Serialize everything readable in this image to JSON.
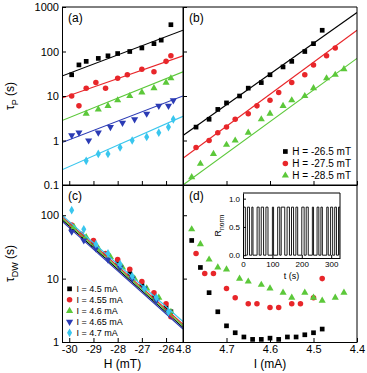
{
  "chart_data": [
    {
      "type": "scatter",
      "title": "(a)",
      "ylabel": [
        "τ",
        "P",
        " (s)"
      ],
      "log": "y",
      "tick_labels": "y",
      "xlim": [
        -30.3,
        -25.3
      ],
      "ylim": [
        0.1,
        1000
      ],
      "xticks": [
        -30,
        -29,
        -28,
        -27,
        -26
      ],
      "yticks": [
        0.1,
        1,
        10,
        100,
        1000
      ],
      "series": [
        {
          "color": "#000000",
          "marker": "square",
          "x": [
            -29.9,
            -29.6,
            -29.3,
            -28.8,
            -28.4,
            -28,
            -27.5,
            -27,
            -26.5,
            -26.2,
            -25.8
          ],
          "values": [
            30,
            50,
            60,
            70,
            80,
            90,
            100,
            120,
            150,
            180,
            400
          ],
          "fit_x": [
            -30.3,
            -25.3
          ],
          "fit_values": [
            28,
            300
          ]
        },
        {
          "color": "#e8262a",
          "marker": "circle",
          "x": [
            -29.9,
            -29.6,
            -29.3,
            -28.9,
            -28.5,
            -28,
            -27.6,
            -27,
            -26.5,
            -26,
            -25.8
          ],
          "values": [
            10,
            6,
            15,
            20,
            15,
            25,
            30,
            40,
            35,
            60,
            80
          ],
          "fit_x": [
            -30.3,
            -25.3
          ],
          "fit_values": [
            9,
            80
          ]
        },
        {
          "color": "#5cc83a",
          "marker": "triangle-up",
          "x": [
            -29.3,
            -28.8,
            -28.4,
            -28,
            -27.5,
            -27,
            -26.5,
            -26,
            -25.8
          ],
          "values": [
            4,
            5,
            6,
            8,
            10,
            12,
            15,
            20,
            25
          ],
          "fit_x": [
            -30.3,
            -25.3
          ],
          "fit_values": [
            2.8,
            35
          ]
        },
        {
          "color": "#2b3bb5",
          "marker": "triangle-down",
          "x": [
            -29.9,
            -29.6,
            -29.2,
            -28.8,
            -28.3,
            -27.8,
            -27.3,
            -26.8,
            -26.3,
            -25.9,
            -25.7
          ],
          "values": [
            1.3,
            1.5,
            1.0,
            1.5,
            2,
            2.5,
            3,
            4,
            6,
            6,
            8
          ],
          "fit_x": [
            -30.3,
            -25.3
          ],
          "fit_values": [
            0.9,
            10
          ]
        },
        {
          "color": "#39c6ee",
          "marker": "diamond",
          "x": [
            -29.3,
            -28.8,
            -28.4,
            -27.9,
            -27.4,
            -26.8,
            -26.3,
            -25.9,
            -25.7
          ],
          "values": [
            0.35,
            0.5,
            0.5,
            0.7,
            1,
            1.2,
            1.5,
            2,
            3
          ],
          "fit_x": [
            -30.3,
            -25.3
          ],
          "fit_values": [
            0.22,
            3.5
          ]
        }
      ]
    },
    {
      "type": "scatter",
      "title": "(b)",
      "log": "y",
      "tick_labels": false,
      "legend": "lower right",
      "xlim": [
        4.8,
        4.4
      ],
      "ylim": [
        0.1,
        1000
      ],
      "xticks": [
        4.8,
        4.7,
        4.6,
        4.5,
        4.4
      ],
      "yticks": [
        0.1,
        1,
        10,
        100,
        1000
      ],
      "series": [
        {
          "name": "H = -26.5 mT",
          "color": "#000000",
          "marker": "square",
          "x": [
            4.77,
            4.74,
            4.72,
            4.7,
            4.67,
            4.65,
            4.62,
            4.6,
            4.57,
            4.55,
            4.52,
            4.5,
            4.48
          ],
          "values": [
            2,
            3,
            5,
            7,
            10,
            15,
            20,
            30,
            45,
            60,
            100,
            150,
            300
          ],
          "fit_x": [
            4.8,
            4.4
          ],
          "fit_values": [
            1.3,
            750
          ]
        },
        {
          "name": "H = -27.5 mT",
          "color": "#e8262a",
          "marker": "circle",
          "x": [
            4.77,
            4.74,
            4.72,
            4.7,
            4.68,
            4.65,
            4.63,
            4.6,
            4.58,
            4.55,
            4.52,
            4.5,
            4.47,
            4.45
          ],
          "values": [
            0.7,
            1,
            1.5,
            2,
            3,
            4,
            6,
            8,
            12,
            20,
            30,
            50,
            80,
            120
          ],
          "fit_x": [
            4.8,
            4.4
          ],
          "fit_values": [
            0.4,
            300
          ]
        },
        {
          "name": "H = -28.5 mT",
          "color": "#5cc83a",
          "marker": "triangle-up",
          "x": [
            4.78,
            4.76,
            4.73,
            4.7,
            4.68,
            4.65,
            4.62,
            4.6,
            4.57,
            4.55,
            4.52,
            4.5,
            4.47,
            4.45,
            4.43
          ],
          "values": [
            0.15,
            0.3,
            0.5,
            0.8,
            1,
            1.5,
            3,
            4,
            6,
            8,
            10,
            15,
            25,
            30,
            40
          ],
          "fit_x": [
            4.8,
            4.4
          ],
          "fit_values": [
            0.1,
            70
          ]
        }
      ]
    },
    {
      "type": "scatter",
      "title": "(c)",
      "xlabel": "H (mT)",
      "ylabel": [
        "τ",
        "DW",
        " (s)"
      ],
      "log": "y",
      "legend": "lower left",
      "xlim": [
        -30.3,
        -25.3
      ],
      "ylim": [
        1,
        300
      ],
      "xticks": [
        -30,
        -29,
        -28,
        -27,
        -26
      ],
      "yticks": [
        1,
        10,
        100
      ],
      "series": [
        {
          "name": "I = 4.5 mA",
          "color": "#000000",
          "marker": "square",
          "x": [
            -29.9,
            -29.4,
            -29,
            -28.5,
            -28,
            -27.5,
            -27,
            -26.5,
            -26,
            -25.8
          ],
          "values": [
            60,
            45,
            35,
            25,
            18,
            12,
            8,
            5,
            3.5,
            3
          ],
          "fit_x": [
            -30.3,
            -25.3
          ],
          "fit_values": [
            85,
            1.7
          ]
        },
        {
          "name": "I = 4.55 mA",
          "color": "#e8262a",
          "marker": "circle",
          "x": [
            -29.9,
            -29.5,
            -29,
            -28.5,
            -28,
            -27.5,
            -27,
            -26.5,
            -26,
            -25.8
          ],
          "values": [
            70,
            50,
            40,
            25,
            20,
            14,
            9,
            6,
            4,
            2.5
          ],
          "fit_x": [
            -30.3,
            -25.3
          ],
          "fit_values": [
            95,
            1.9
          ]
        },
        {
          "name": "I = 4.6 mA",
          "color": "#5cc83a",
          "marker": "triangle-up",
          "x": [
            -29.8,
            -29.3,
            -28.8,
            -28.3,
            -27.8,
            -27.3,
            -26.8,
            -26.3,
            -25.8
          ],
          "values": [
            65,
            45,
            30,
            22,
            15,
            10,
            7,
            5,
            3
          ],
          "fit_x": [
            -30.3,
            -25.3
          ],
          "fit_values": [
            90,
            1.8
          ]
        },
        {
          "name": "I = 4.65 mA",
          "color": "#2b3bb5",
          "marker": "triangle-down",
          "x": [
            -29.9,
            -29.4,
            -28.9,
            -28.4,
            -27.9,
            -27.4,
            -26.9,
            -26.4,
            -25.9
          ],
          "values": [
            55,
            40,
            30,
            20,
            15,
            10,
            7,
            4.5,
            3
          ],
          "fit_x": [
            -30.3,
            -25.3
          ],
          "fit_values": [
            80,
            1.6
          ]
        },
        {
          "name": "I = 4.7 mA",
          "color": "#39c6ee",
          "marker": "diamond",
          "x": [
            -29.9,
            -29.4,
            -28.9,
            -28.4,
            -27.9,
            -27.4,
            -26.9,
            -26.4,
            -25.9
          ],
          "values": [
            120,
            60,
            35,
            25,
            17,
            11,
            7,
            5,
            3
          ],
          "fit_x": [
            -30.3,
            -25.3
          ],
          "fit_values": [
            100,
            2.1
          ]
        }
      ]
    },
    {
      "type": "scatter",
      "title": "(d)",
      "xlabel": "I (mA)",
      "log": "y",
      "tick_labels": "x",
      "xlim": [
        4.8,
        4.4
      ],
      "ylim": [
        1,
        300
      ],
      "xticks": [
        4.8,
        4.7,
        4.6,
        4.5,
        4.4
      ],
      "yticks": [
        1,
        10,
        100
      ],
      "series": [
        {
          "color": "#000000",
          "marker": "square",
          "x": [
            4.78,
            4.76,
            4.74,
            4.72,
            4.7,
            4.68,
            4.66,
            4.64,
            4.62,
            4.6,
            4.58,
            4.56,
            4.54,
            4.52,
            4.5,
            4.48
          ],
          "values": [
            40,
            15,
            6,
            3,
            1.8,
            1.4,
            1.2,
            1.1,
            1.1,
            1.15,
            1.1,
            1.2,
            1.2,
            1.3,
            1.4,
            1.6
          ]
        },
        {
          "color": "#e8262a",
          "marker": "circle",
          "x": [
            4.77,
            4.75,
            4.73,
            4.7,
            4.68,
            4.65,
            4.63,
            4.6,
            4.58,
            4.55,
            4.53,
            4.5,
            4.48
          ],
          "values": [
            25,
            12,
            12,
            7,
            5,
            4,
            4,
            3.5,
            3.5,
            4,
            4,
            5,
            10
          ]
        },
        {
          "color": "#5cc83a",
          "marker": "triangle-up",
          "x": [
            4.78,
            4.76,
            4.74,
            4.72,
            4.7,
            4.67,
            4.65,
            4.62,
            4.6,
            4.57,
            4.55,
            4.52,
            4.5,
            4.48,
            4.45,
            4.43
          ],
          "values": [
            60,
            35,
            20,
            15,
            14,
            10,
            9,
            8,
            7,
            6,
            5,
            6,
            5,
            4.5,
            5,
            6
          ]
        }
      ]
    },
    {
      "type": "line",
      "xlabel": "t (s)",
      "ylabel": [
        "R",
        "norm"
      ],
      "xlim": [
        0,
        330
      ],
      "ylim": [
        -0.05,
        1.1
      ],
      "xticks": [
        0,
        100,
        200,
        300
      ],
      "yticks": [
        {
          "value": 0,
          "label": "0.0"
        },
        {
          "value": 0.5,
          "label": "0.5"
        },
        {
          "value": 1,
          "label": "1.0"
        }
      ],
      "series": [
        {
          "color": "#000000",
          "line_style": "step",
          "x": [
            0,
            8,
            15,
            22,
            30,
            34,
            48,
            55,
            62,
            70,
            78,
            85,
            100,
            104,
            118,
            125,
            130,
            142,
            150,
            158,
            165,
            172,
            180,
            186,
            200,
            208,
            215,
            222,
            236,
            240,
            252,
            258,
            265,
            270,
            285,
            290,
            298,
            305,
            312,
            318,
            325,
            330
          ],
          "values": [
            0.85,
            0,
            0.85,
            0,
            0.85,
            0,
            0.85,
            0,
            0.85,
            0,
            0.85,
            0,
            0.85,
            0,
            0.85,
            0,
            0.85,
            0,
            0.85,
            0,
            0.85,
            0,
            0.85,
            0,
            0.85,
            0,
            0.85,
            0,
            0.85,
            0,
            0.85,
            0,
            0.85,
            0,
            0.85,
            0,
            0.85,
            0,
            0.85,
            0,
            0.85,
            0
          ]
        }
      ]
    }
  ]
}
